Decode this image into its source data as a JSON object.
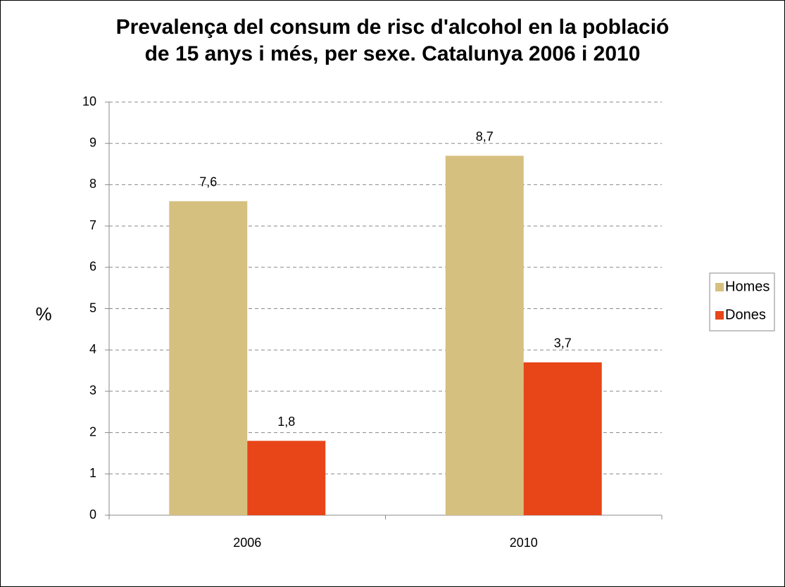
{
  "chart_data": {
    "type": "bar",
    "title": "Prevalença del consum de risc d'alcohol en la població\nde 15 anys i més, per sexe. Catalunya 2006 i 2010",
    "y_label": "%",
    "categories": [
      "2006",
      "2010"
    ],
    "series": [
      {
        "name": "Homes",
        "color": "#d6c07f",
        "values": [
          7.6,
          8.7
        ],
        "value_labels": [
          "7,6",
          "8,7"
        ]
      },
      {
        "name": "Dones",
        "color": "#e84518",
        "values": [
          1.8,
          3.7
        ],
        "value_labels": [
          "1,8",
          "3,7"
        ]
      }
    ],
    "ylim": [
      0,
      10
    ],
    "yticks": [
      0,
      1,
      2,
      3,
      4,
      5,
      6,
      7,
      8,
      9,
      10
    ],
    "grid": true,
    "legend": "right"
  }
}
